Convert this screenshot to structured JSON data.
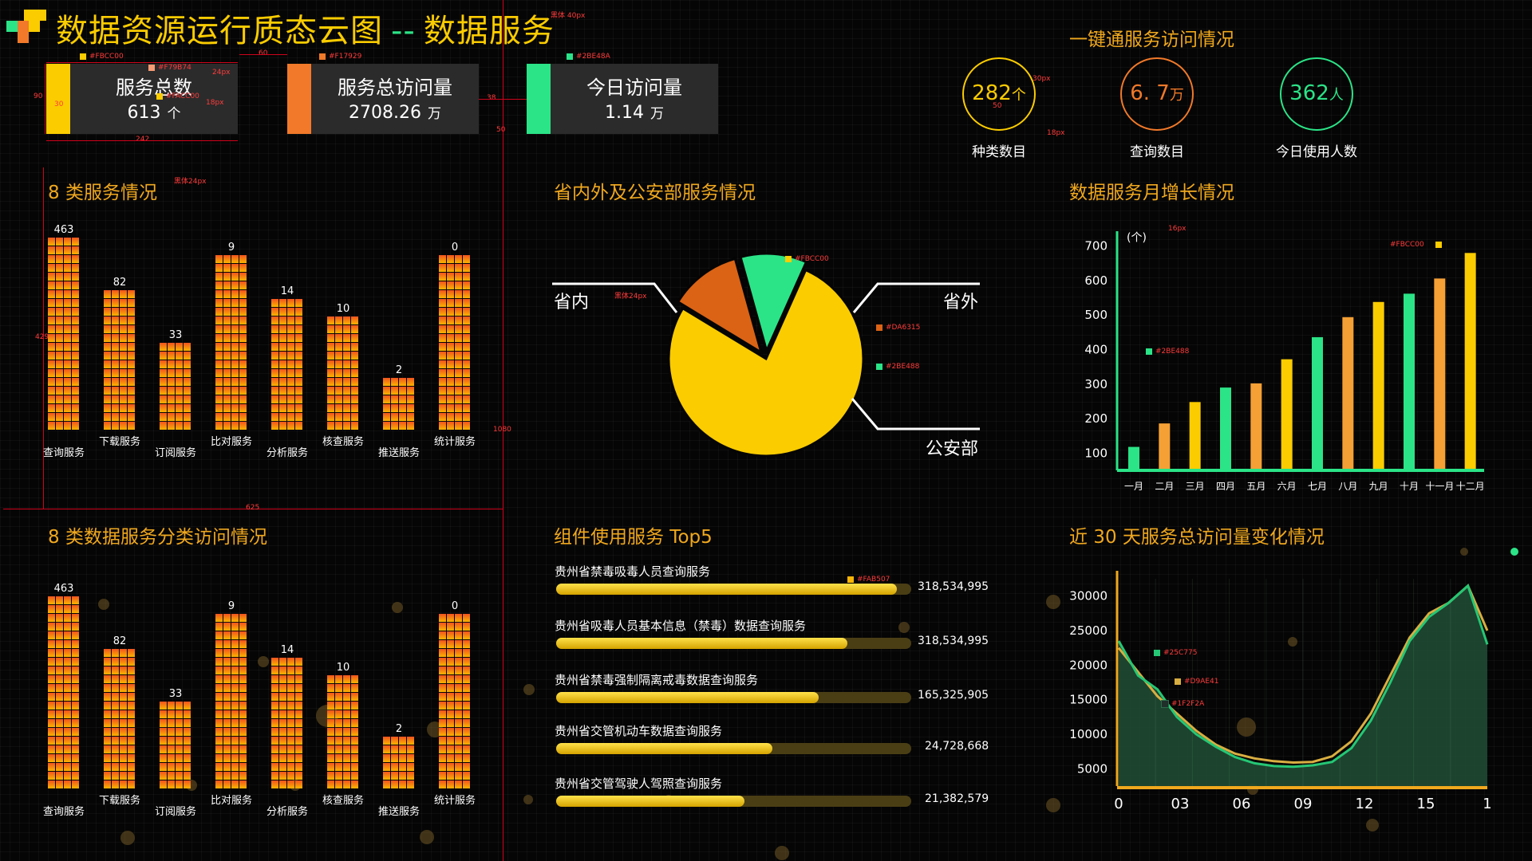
{
  "header": {
    "title_left": "数据资源运行质态云图",
    "separator": "--",
    "title_right": "数据服务",
    "colors": {
      "yellow": "#FBCC00",
      "orange": "#F17929",
      "green": "#2BE487"
    }
  },
  "kpis": [
    {
      "label": "服务总数",
      "value": "613",
      "unit": "个",
      "color": "#FBCC00"
    },
    {
      "label": "服务总访问量",
      "value": "2708.26",
      "unit": "万",
      "color": "#F17929"
    },
    {
      "label": "今日访问量",
      "value": "1.14",
      "unit": "万",
      "color": "#2BE487"
    }
  ],
  "one_stop": {
    "title": "一键通服务访问情况",
    "items": [
      {
        "value": "282",
        "unit": "个",
        "label": "种类数目",
        "color": "#FBCC00"
      },
      {
        "value": "6. 7",
        "unit": "万",
        "label": "查询数目",
        "color": "#F17929"
      },
      {
        "value": "362",
        "unit": "人",
        "label": "今日使用人数",
        "color": "#2BE487"
      }
    ]
  },
  "section_titles": {
    "services8": "8 类服务情况",
    "provincial": "省内外及公安部服务情况",
    "monthly": "数据服务月增长情况",
    "services8_cat": "8 类数据服务分类访问情况",
    "top5": "组件使用服务 Top5",
    "days30": "近 30 天服务总访问量变化情况"
  },
  "annotations": {
    "title_font": "黑体 40px",
    "kpi_sub": "#FBCC00",
    "kpi_sub2": "#F79B74",
    "kpi_sub3": "#FACC00",
    "kpi_orange": "#F17929",
    "kpi_green": "#2BE48A",
    "font24": "24px",
    "font18": "18px",
    "dim_90": "90",
    "dim_30": "30",
    "dim_242": "242",
    "dim_60": "60",
    "dim_38": "38",
    "dim_50": "50",
    "circ_30px": "30px",
    "circ_18px": "18px",
    "circ_50": "50",
    "sec_font": "黑体24px",
    "dim_429": "429",
    "dim_625": "625",
    "dim_1080": "1080",
    "pie_a": "#FBCC00",
    "pie_b": "#DA6315",
    "pie_c": "#2BE488",
    "pie_font": "黑体24px",
    "month_16px": "16px",
    "month_a": "#FBCC00",
    "month_b": "#2BE488",
    "top5_a": "#FAB507",
    "line_a": "#25C775",
    "line_b": "#D9AE41",
    "line_c": "#1F2F2A"
  },
  "chart_data": [
    {
      "type": "bar",
      "title": "8 类服务情况",
      "categories": [
        "查询服务",
        "下载服务",
        "订阅服务",
        "比对服务",
        "分析服务",
        "核查服务",
        "推送服务",
        "统计服务"
      ],
      "values": [
        463,
        82,
        33,
        9,
        14,
        10,
        2,
        0
      ]
    },
    {
      "type": "pie",
      "title": "省内外及公安部服务情况",
      "labels": [
        "省内",
        "省外",
        "公安部"
      ],
      "values": [
        77,
        12,
        11
      ],
      "colors": [
        "#FBCC00",
        "#DA6315",
        "#2BE488"
      ]
    },
    {
      "type": "bar",
      "title": "数据服务月增长情况",
      "ylabel": "(个)",
      "categories": [
        "一月",
        "二月",
        "三月",
        "四月",
        "五月",
        "六月",
        "七月",
        "八月",
        "九月",
        "十月",
        "十一月",
        "十二月"
      ],
      "values": [
        118,
        186,
        248,
        290,
        302,
        372,
        436,
        494,
        538,
        562,
        606,
        680
      ],
      "yticks": [
        100,
        200,
        300,
        400,
        500,
        600,
        700
      ],
      "ylim": [
        50,
        720
      ]
    },
    {
      "type": "bar",
      "title": "8 类数据服务分类访问情况",
      "categories": [
        "查询服务",
        "下载服务",
        "订阅服务",
        "比对服务",
        "分析服务",
        "核查服务",
        "推送服务",
        "统计服务"
      ],
      "values": [
        463,
        82,
        33,
        9,
        14,
        10,
        2,
        0
      ]
    },
    {
      "type": "bar",
      "title": "组件使用服务 Top5",
      "categories": [
        "贵州省禁毒吸毒人员查询服务",
        "贵州省吸毒人员基本信息（禁毒）数据查询服务",
        "贵州省禁毒强制隔离戒毒数据查询服务",
        "贵州省交管机动车数据查询服务",
        "贵州省交管驾驶人驾照查询服务"
      ],
      "values": [
        318534995,
        318534995,
        165325905,
        24728668,
        21382579
      ],
      "labels": [
        "318,534,995",
        "318,534,995",
        "165,325,905",
        "24,728,668",
        "21,382,579"
      ]
    },
    {
      "type": "area",
      "title": "近 30 天服务总访问量变化情况",
      "xticks": [
        "0",
        "03",
        "06",
        "09",
        "12",
        "15",
        "1"
      ],
      "yticks": [
        5000,
        10000,
        15000,
        20000,
        25000,
        30000
      ],
      "ylim": [
        2500,
        32500
      ],
      "x": [
        0,
        1,
        2,
        3,
        4,
        5,
        6,
        7,
        8,
        9,
        10,
        11,
        12,
        13,
        14,
        15,
        16,
        17,
        18,
        19
      ],
      "series": [
        {
          "values": [
            22500,
            19000,
            15500,
            13000,
            10500,
            8500,
            7200,
            6500,
            6100,
            5900,
            6000,
            6800,
            9000,
            13000,
            18500,
            24000,
            27500,
            29000,
            31500,
            25000
          ]
        },
        {
          "values": [
            23500,
            18500,
            16500,
            12500,
            10000,
            8200,
            6700,
            5800,
            5400,
            5300,
            5500,
            6000,
            8000,
            12000,
            17500,
            23500,
            27000,
            29000,
            31500,
            23000
          ]
        }
      ]
    }
  ]
}
